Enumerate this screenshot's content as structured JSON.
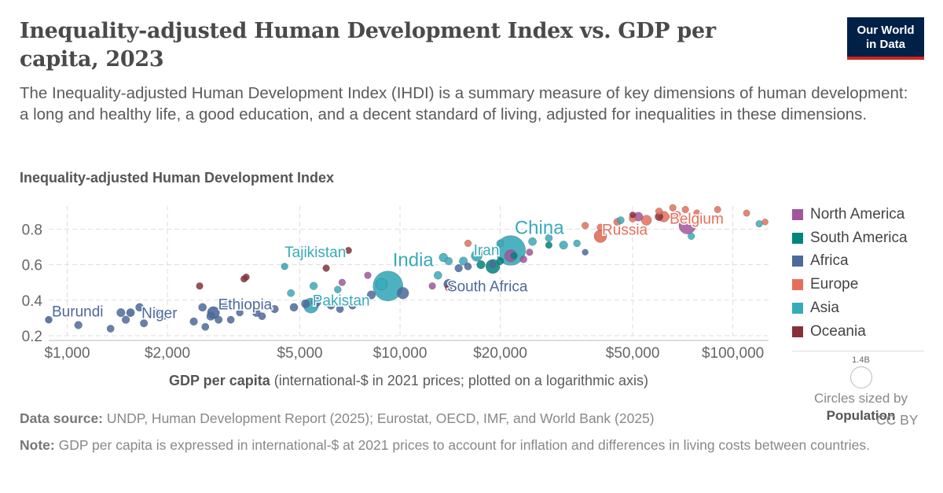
{
  "header": {
    "title": "Inequality-adjusted Human Development Index vs. GDP per capita, 2023",
    "subtitle": "The Inequality-adjusted Human Development Index (IHDI) is a summary measure of key dimensions of human development: a long and healthy life, a good education, and a decent standard of living, adjusted for inequalities in these dimensions.",
    "logo_line1": "Our World",
    "logo_line2": "in Data"
  },
  "colors": {
    "North America": "#a2559c",
    "South America": "#00847e",
    "Africa": "#4c6a9c",
    "Europe": "#e56e5a",
    "Asia": "#38aaba",
    "Oceania": "#883039",
    "text": "#5b5b5b",
    "grid": "#dddddd"
  },
  "chart_data": {
    "type": "scatter",
    "title": "Inequality-adjusted Human Development Index vs. GDP per capita, 2023",
    "ylabel": "Inequality-adjusted Human Development Index",
    "xlabel_bold": "GDP per capita",
    "xlabel_rest": " (international-$ in 2021 prices; plotted on a logarithmic axis)",
    "x_scale": "log",
    "xlim": [
      880,
      128000
    ],
    "ylim": [
      0.2,
      0.93
    ],
    "x_ticks": [
      1000,
      2000,
      5000,
      10000,
      20000,
      50000,
      100000
    ],
    "x_tick_labels": [
      "$1,000",
      "$2,000",
      "$5,000",
      "$10,000",
      "$20,000",
      "$50,000",
      "$100,000"
    ],
    "y_ticks": [
      0.2,
      0.4,
      0.6,
      0.8
    ],
    "y_tick_labels": [
      "0.2",
      "0.4",
      "0.6",
      "0.8"
    ],
    "grid": true,
    "legend_position": "right",
    "legend": [
      "North America",
      "South America",
      "Africa",
      "Europe",
      "Asia",
      "Oceania"
    ],
    "size_legend": {
      "value": "1.4B",
      "caption_prefix": "Circles sized by",
      "caption_bold": "Population"
    },
    "labeled_points": [
      {
        "name": "Burundi",
        "region": "Africa",
        "x": 880,
        "y": 0.29,
        "pop": 13
      },
      {
        "name": "Niger",
        "region": "Africa",
        "x": 1550,
        "y": 0.33,
        "pop": 27
      },
      {
        "name": "Ethiopia",
        "region": "Africa",
        "x": 2750,
        "y": 0.33,
        "pop": 126
      },
      {
        "name": "Tajikistan",
        "region": "Asia",
        "x": 4500,
        "y": 0.59,
        "pop": 10
      },
      {
        "name": "Pakistan",
        "region": "Asia",
        "x": 5400,
        "y": 0.37,
        "pop": 240
      },
      {
        "name": "India",
        "region": "Asia",
        "x": 9200,
        "y": 0.48,
        "pop": 1430
      },
      {
        "name": "Iran",
        "region": "Asia",
        "x": 17000,
        "y": 0.65,
        "pop": 89
      },
      {
        "name": "South Africa",
        "region": "Africa",
        "x": 14000,
        "y": 0.49,
        "pop": 60
      },
      {
        "name": "China",
        "region": "Asia",
        "x": 21500,
        "y": 0.68,
        "pop": 1410
      },
      {
        "name": "Russia",
        "region": "Europe",
        "x": 40000,
        "y": 0.76,
        "pop": 144
      },
      {
        "name": "Belgium",
        "region": "Europe",
        "x": 66000,
        "y": 0.87,
        "pop": 12
      }
    ],
    "points": [
      {
        "region": "Africa",
        "x": 1080,
        "y": 0.26,
        "pop": 20
      },
      {
        "region": "Africa",
        "x": 1350,
        "y": 0.24,
        "pop": 15
      },
      {
        "region": "Africa",
        "x": 1450,
        "y": 0.33,
        "pop": 30
      },
      {
        "region": "Africa",
        "x": 1500,
        "y": 0.29,
        "pop": 20
      },
      {
        "region": "Africa",
        "x": 1650,
        "y": 0.36,
        "pop": 25
      },
      {
        "region": "Africa",
        "x": 1700,
        "y": 0.27,
        "pop": 18
      },
      {
        "region": "Africa",
        "x": 1850,
        "y": 0.33,
        "pop": 15
      },
      {
        "region": "Africa",
        "x": 1950,
        "y": 0.31,
        "pop": 12
      },
      {
        "region": "Africa",
        "x": 2400,
        "y": 0.28,
        "pop": 20
      },
      {
        "region": "Africa",
        "x": 2550,
        "y": 0.36,
        "pop": 25
      },
      {
        "region": "Africa",
        "x": 2600,
        "y": 0.25,
        "pop": 15
      },
      {
        "region": "Africa",
        "x": 2700,
        "y": 0.31,
        "pop": 30
      },
      {
        "region": "Africa",
        "x": 2850,
        "y": 0.29,
        "pop": 18
      },
      {
        "region": "Africa",
        "x": 3000,
        "y": 0.37,
        "pop": 20
      },
      {
        "region": "Africa",
        "x": 3100,
        "y": 0.29,
        "pop": 15
      },
      {
        "region": "Africa",
        "x": 3300,
        "y": 0.33,
        "pop": 12
      },
      {
        "region": "Africa",
        "x": 3700,
        "y": 0.33,
        "pop": 25
      },
      {
        "region": "Africa",
        "x": 3850,
        "y": 0.31,
        "pop": 15
      },
      {
        "region": "Africa",
        "x": 4200,
        "y": 0.35,
        "pop": 20
      },
      {
        "region": "Africa",
        "x": 4800,
        "y": 0.36,
        "pop": 25
      },
      {
        "region": "Africa",
        "x": 5200,
        "y": 0.38,
        "pop": 30
      },
      {
        "region": "Africa",
        "x": 5600,
        "y": 0.39,
        "pop": 55
      },
      {
        "region": "Africa",
        "x": 6200,
        "y": 0.37,
        "pop": 20
      },
      {
        "region": "Africa",
        "x": 6600,
        "y": 0.35,
        "pop": 15
      },
      {
        "region": "Africa",
        "x": 7200,
        "y": 0.37,
        "pop": 18
      },
      {
        "region": "Africa",
        "x": 8200,
        "y": 0.43,
        "pop": 30
      },
      {
        "region": "Africa",
        "x": 10200,
        "y": 0.44,
        "pop": 110
      },
      {
        "region": "Africa",
        "x": 15000,
        "y": 0.58,
        "pop": 20
      },
      {
        "region": "Africa",
        "x": 16000,
        "y": 0.59,
        "pop": 15
      },
      {
        "region": "Africa",
        "x": 19000,
        "y": 0.6,
        "pop": 10
      },
      {
        "region": "Africa",
        "x": 36000,
        "y": 0.67,
        "pop": 5
      },
      {
        "region": "Asia",
        "x": 4700,
        "y": 0.44,
        "pop": 15
      },
      {
        "region": "Asia",
        "x": 5500,
        "y": 0.48,
        "pop": 20
      },
      {
        "region": "Asia",
        "x": 6500,
        "y": 0.46,
        "pop": 12
      },
      {
        "region": "Asia",
        "x": 8800,
        "y": 0.49,
        "pop": 115
      },
      {
        "region": "Asia",
        "x": 13000,
        "y": 0.54,
        "pop": 25
      },
      {
        "region": "Asia",
        "x": 13500,
        "y": 0.64,
        "pop": 35
      },
      {
        "region": "Asia",
        "x": 14000,
        "y": 0.62,
        "pop": 20
      },
      {
        "region": "Asia",
        "x": 15500,
        "y": 0.62,
        "pop": 30
      },
      {
        "region": "Asia",
        "x": 20000,
        "y": 0.72,
        "pop": 15
      },
      {
        "region": "Asia",
        "x": 25000,
        "y": 0.73,
        "pop": 25
      },
      {
        "region": "Asia",
        "x": 28000,
        "y": 0.75,
        "pop": 15
      },
      {
        "region": "Asia",
        "x": 31000,
        "y": 0.71,
        "pop": 30
      },
      {
        "region": "Asia",
        "x": 34000,
        "y": 0.72,
        "pop": 12
      },
      {
        "region": "Asia",
        "x": 46000,
        "y": 0.85,
        "pop": 15
      },
      {
        "region": "Asia",
        "x": 75000,
        "y": 0.76,
        "pop": 10
      },
      {
        "region": "Asia",
        "x": 120000,
        "y": 0.83,
        "pop": 10
      },
      {
        "region": "South America",
        "x": 17500,
        "y": 0.6,
        "pop": 30
      },
      {
        "region": "South America",
        "x": 19000,
        "y": 0.59,
        "pop": 200
      },
      {
        "region": "South America",
        "x": 20000,
        "y": 0.62,
        "pop": 15
      },
      {
        "region": "South America",
        "x": 22000,
        "y": 0.65,
        "pop": 10
      },
      {
        "region": "South America",
        "x": 28000,
        "y": 0.71,
        "pop": 10
      },
      {
        "region": "North America",
        "x": 6700,
        "y": 0.5,
        "pop": 10
      },
      {
        "region": "North America",
        "x": 8000,
        "y": 0.54,
        "pop": 10
      },
      {
        "region": "North America",
        "x": 12500,
        "y": 0.48,
        "pop": 10
      },
      {
        "region": "North America",
        "x": 21500,
        "y": 0.65,
        "pop": 128
      },
      {
        "region": "North America",
        "x": 23500,
        "y": 0.63,
        "pop": 12
      },
      {
        "region": "North America",
        "x": 24500,
        "y": 0.67,
        "pop": 10
      },
      {
        "region": "North America",
        "x": 52000,
        "y": 0.87,
        "pop": 40
      },
      {
        "region": "North America",
        "x": 73000,
        "y": 0.82,
        "pop": 335
      },
      {
        "region": "Europe",
        "x": 16000,
        "y": 0.72,
        "pop": 10
      },
      {
        "region": "Europe",
        "x": 18000,
        "y": 0.67,
        "pop": 8
      },
      {
        "region": "Europe",
        "x": 36000,
        "y": 0.82,
        "pop": 10
      },
      {
        "region": "Europe",
        "x": 40000,
        "y": 0.81,
        "pop": 10
      },
      {
        "region": "Europe",
        "x": 45000,
        "y": 0.84,
        "pop": 20
      },
      {
        "region": "Europe",
        "x": 50000,
        "y": 0.86,
        "pop": 15
      },
      {
        "region": "Europe",
        "x": 55000,
        "y": 0.85,
        "pop": 68
      },
      {
        "region": "Europe",
        "x": 60000,
        "y": 0.9,
        "pop": 12
      },
      {
        "region": "Europe",
        "x": 62000,
        "y": 0.87,
        "pop": 84
      },
      {
        "region": "Europe",
        "x": 66000,
        "y": 0.92,
        "pop": 10
      },
      {
        "region": "Europe",
        "x": 68000,
        "y": 0.88,
        "pop": 17
      },
      {
        "region": "Europe",
        "x": 72000,
        "y": 0.91,
        "pop": 10
      },
      {
        "region": "Europe",
        "x": 78000,
        "y": 0.89,
        "pop": 10
      },
      {
        "region": "Europe",
        "x": 90000,
        "y": 0.91,
        "pop": 8
      },
      {
        "region": "Europe",
        "x": 110000,
        "y": 0.89,
        "pop": 8
      },
      {
        "region": "Europe",
        "x": 125000,
        "y": 0.84,
        "pop": 5
      },
      {
        "region": "Oceania",
        "x": 2500,
        "y": 0.48,
        "pop": 10
      },
      {
        "region": "Oceania",
        "x": 3400,
        "y": 0.52,
        "pop": 10
      },
      {
        "region": "Oceania",
        "x": 3450,
        "y": 0.53,
        "pop": 8
      },
      {
        "region": "Oceania",
        "x": 6000,
        "y": 0.58,
        "pop": 10
      },
      {
        "region": "Oceania",
        "x": 7000,
        "y": 0.68,
        "pop": 8
      },
      {
        "region": "Oceania",
        "x": 14000,
        "y": 0.47,
        "pop": 10
      },
      {
        "region": "Oceania",
        "x": 60000,
        "y": 0.87,
        "pop": 26
      },
      {
        "region": "Oceania",
        "x": 50000,
        "y": 0.88,
        "pop": 5
      }
    ]
  },
  "footer": {
    "source_label": "Data source:",
    "source_text": " UNDP, Human Development Report (2025); Eurostat, OECD, IMF, and World Bank (2025)",
    "note_label": "Note:",
    "note_text": " GDP per capita is expressed in international-$ at 2021 prices to account for inflation and differences in living costs between countries.",
    "license": "CC BY"
  }
}
